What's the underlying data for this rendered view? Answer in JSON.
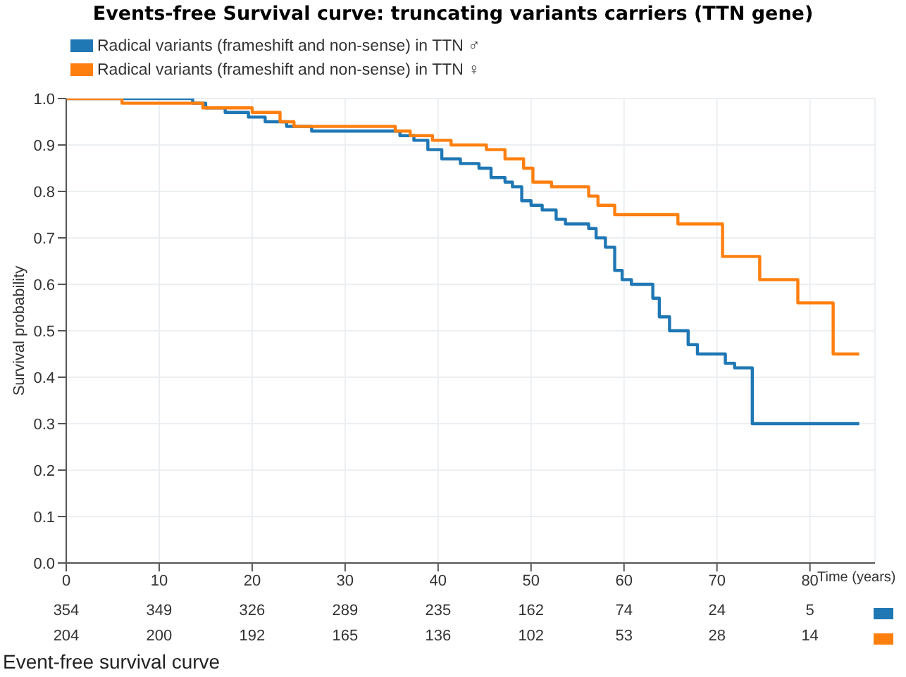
{
  "chart_data": {
    "type": "step",
    "title": "Events-free Survival curve: truncating variants carriers (TTN gene)",
    "xlabel": "Time (years)",
    "ylabel": "Survival probability",
    "xlim": [
      0,
      87
    ],
    "xticks": [
      0,
      10,
      20,
      30,
      40,
      50,
      60,
      70,
      80
    ],
    "ylim": [
      0,
      1
    ],
    "yticks": [
      {
        "value": 0,
        "label": "0.0"
      },
      {
        "value": 0.1,
        "label": "0.1"
      },
      {
        "value": 0.2,
        "label": "0.2"
      },
      {
        "value": 0.3,
        "label": "0.3"
      },
      {
        "value": 0.4,
        "label": "0.4"
      },
      {
        "value": 0.5,
        "label": "0.5"
      },
      {
        "value": 0.6,
        "label": "0.6"
      },
      {
        "value": 0.7,
        "label": "0.7"
      },
      {
        "value": 0.8,
        "label": "0.8"
      },
      {
        "value": 0.9,
        "label": "0.9"
      },
      {
        "value": 1,
        "label": "1.0"
      }
    ],
    "grid": true,
    "legend": "top left",
    "series": [
      {
        "name": "Radical variants (frameshift and non-sense) in TTN ♂",
        "color": "#1f77b4",
        "x": [
          0,
          13.6,
          15,
          17.1,
          19.6,
          21.4,
          23.7,
          26.4,
          35.9,
          37.4,
          38.9,
          40.4,
          42.4,
          44.4,
          45.7,
          47.2,
          48,
          49,
          50,
          51.2,
          52.7,
          53.7,
          56.2,
          57,
          58,
          59,
          59.8,
          60.8,
          63.1,
          63.8,
          64.9,
          66.9,
          67.9,
          70.9,
          71.9,
          73.8,
          85.3
        ],
        "values": [
          1,
          0.99,
          0.98,
          0.97,
          0.96,
          0.95,
          0.94,
          0.93,
          0.92,
          0.91,
          0.89,
          0.87,
          0.86,
          0.85,
          0.83,
          0.82,
          0.81,
          0.78,
          0.77,
          0.76,
          0.74,
          0.73,
          0.72,
          0.7,
          0.68,
          0.63,
          0.61,
          0.6,
          0.57,
          0.53,
          0.5,
          0.47,
          0.45,
          0.43,
          0.42,
          0.3,
          0.3
        ]
      },
      {
        "name": "Radical variants (frameshift and non-sense) in TTN ♀",
        "color": "#ff7f0e",
        "x": [
          0,
          6,
          14.7,
          20,
          23,
          24.5,
          35.4,
          37,
          39.4,
          41.4,
          45.2,
          47.2,
          49.2,
          50.2,
          52.2,
          56.2,
          57.2,
          59,
          65.8,
          70.6,
          74.6,
          78.7,
          82.5,
          85.3
        ],
        "values": [
          1,
          0.99,
          0.98,
          0.97,
          0.95,
          0.94,
          0.93,
          0.92,
          0.91,
          0.9,
          0.89,
          0.87,
          0.85,
          0.82,
          0.81,
          0.79,
          0.77,
          0.75,
          0.73,
          0.66,
          0.61,
          0.56,
          0.45,
          0.45
        ]
      }
    ],
    "annotations": [
      "354",
      "349",
      "326",
      "289",
      "235",
      "162",
      "74",
      "24",
      "5",
      "204",
      "200",
      "192",
      "165",
      "136",
      "102",
      "53",
      "28",
      "14",
      "Event-free survival curve"
    ]
  }
}
